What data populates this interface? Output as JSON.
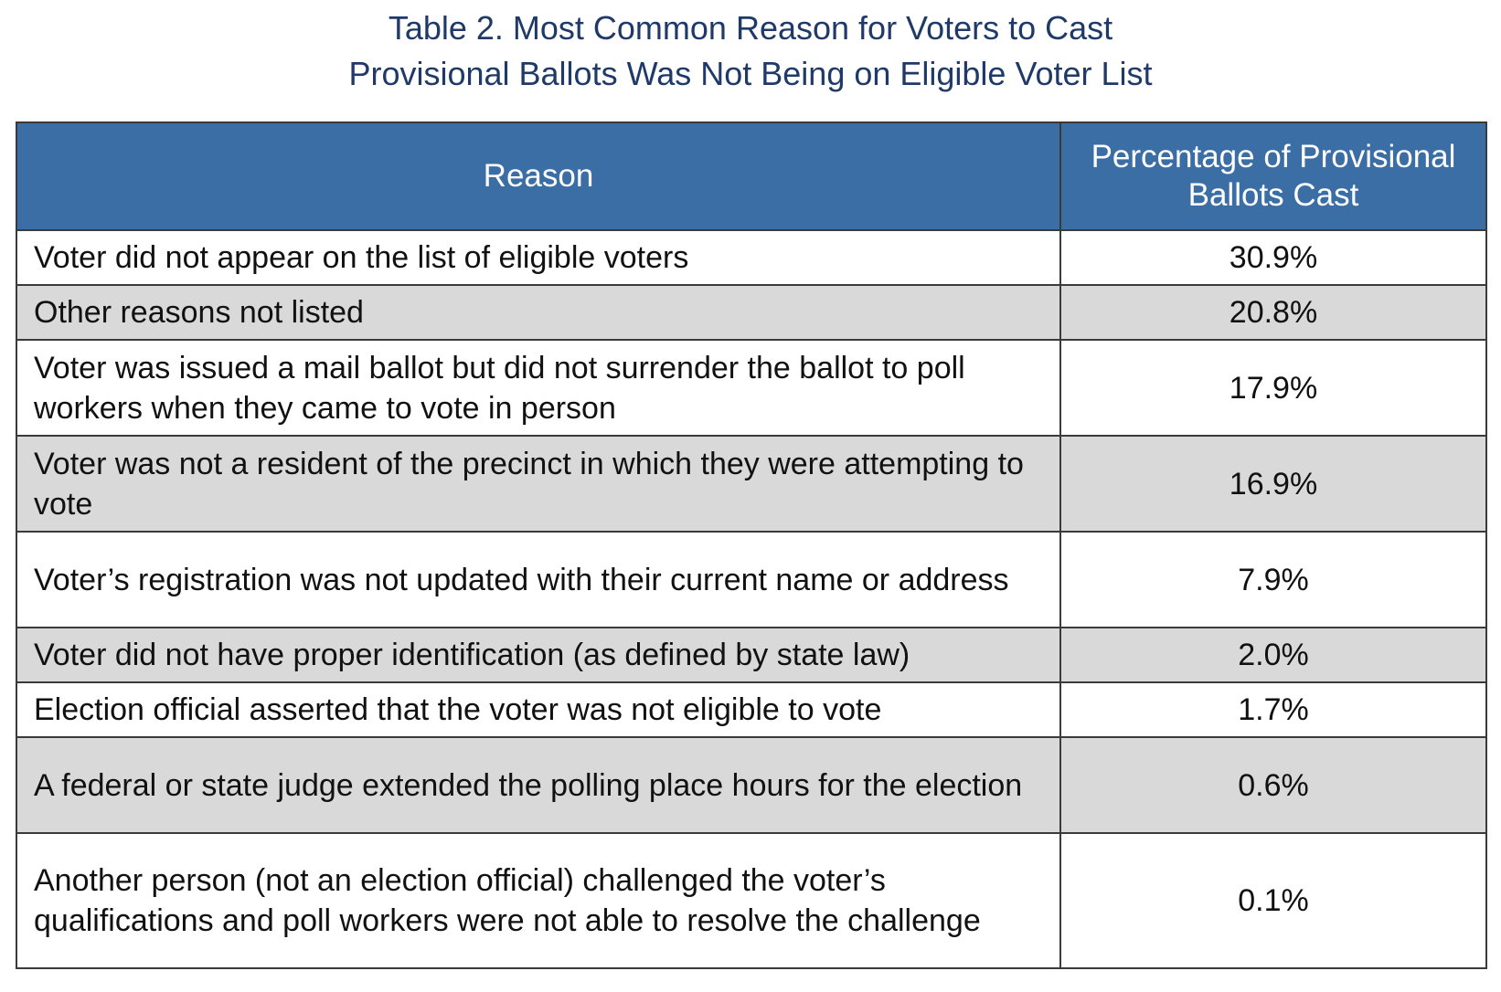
{
  "title": {
    "line1": "Table 2. Most Common Reason for Voters to Cast",
    "line2": "Provisional Ballots Was Not Being on Eligible Voter List"
  },
  "table": {
    "headers": {
      "reason": "Reason",
      "percentage": "Percentage of Provisional Ballots Cast"
    },
    "header_color": "#3b6ea5",
    "stripe_color": "#d9d9d9",
    "rows": [
      {
        "reason": "Voter did not appear on the list of eligible voters",
        "percentage": "30.9%"
      },
      {
        "reason": "Other reasons not listed",
        "percentage": "20.8%"
      },
      {
        "reason": "Voter was issued a mail ballot but did not surrender the ballot to poll workers when they came to vote in person",
        "percentage": "17.9%"
      },
      {
        "reason": "Voter was not a resident of the precinct in which they were attempting to vote",
        "percentage": "16.9%"
      },
      {
        "reason": "Voter’s registration was not updated with their current name or address",
        "percentage": "7.9%"
      },
      {
        "reason": "Voter did not have proper identification (as defined by state law)",
        "percentage": "2.0%"
      },
      {
        "reason": "Election official asserted that the voter was not eligible to vote",
        "percentage": "1.7%"
      },
      {
        "reason": "A federal or state judge extended the polling place hours for the election",
        "percentage": "0.6%"
      },
      {
        "reason": "Another person (not an election official) challenged the voter’s qualifications and poll workers were not able to resolve the challenge",
        "percentage": "0.1%"
      }
    ]
  }
}
